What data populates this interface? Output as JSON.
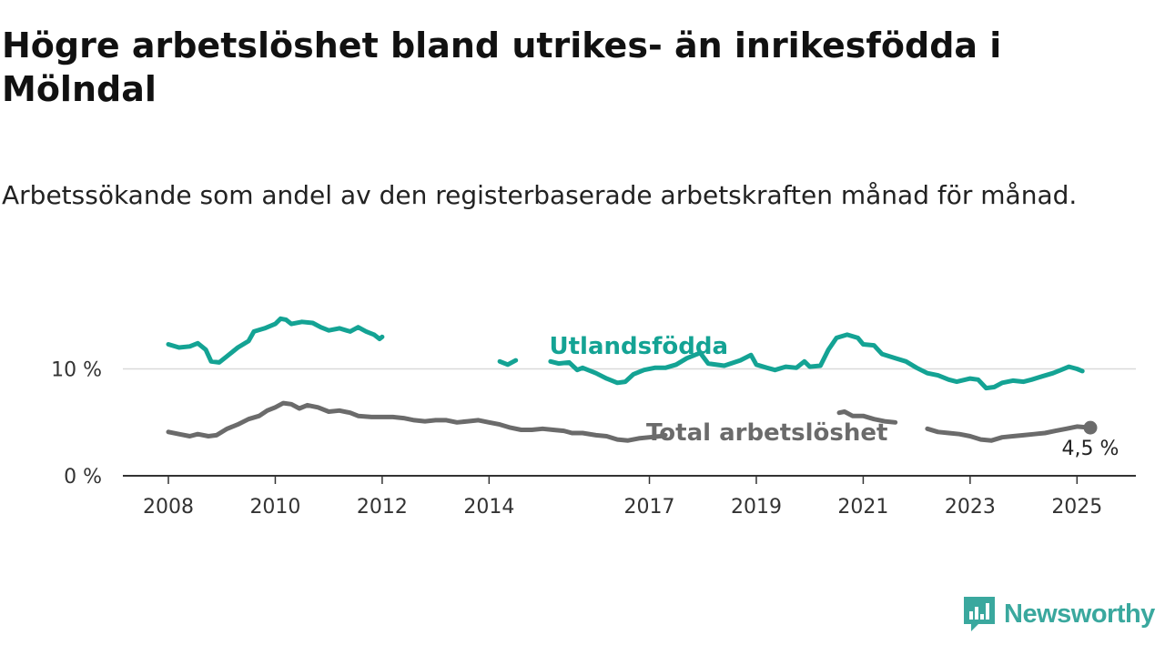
{
  "title": "Högre arbetslöshet bland utrikes- än inrikesfödda i Mölndal",
  "subtitle": "Arbetssökande som andel av den registerbaserade arbetskraften månad för månad.",
  "brand": {
    "name": "Newsworthy",
    "color": "#3aa89e",
    "icon": "newsworthy-logo-icon"
  },
  "chart_data": {
    "type": "line",
    "x_ticks": [
      "2008",
      "2010",
      "2012",
      "2014",
      "2017",
      "2019",
      "2021",
      "2023",
      "2025"
    ],
    "y_ticks": [
      "0 %",
      "10 %"
    ],
    "xlim": [
      2008.0,
      2025.25
    ],
    "ylim": [
      0,
      15
    ],
    "grid": true,
    "series": [
      {
        "name": "Utlandsfödda",
        "color": "#14a394",
        "points": [
          [
            2008.0,
            12.3
          ],
          [
            2008.2,
            12.0
          ],
          [
            2008.4,
            12.1
          ],
          [
            2008.55,
            12.4
          ],
          [
            2008.7,
            11.8
          ],
          [
            2008.8,
            10.7
          ],
          [
            2008.95,
            10.6
          ],
          [
            2009.1,
            11.2
          ],
          [
            2009.3,
            12.0
          ],
          [
            2009.5,
            12.6
          ],
          [
            2009.6,
            13.5
          ],
          [
            2009.8,
            13.8
          ],
          [
            2010.0,
            14.2
          ],
          [
            2010.1,
            14.7
          ],
          [
            2010.2,
            14.6
          ],
          [
            2010.3,
            14.2
          ],
          [
            2010.5,
            14.4
          ],
          [
            2010.7,
            14.3
          ],
          [
            2010.85,
            13.9
          ],
          [
            2011.0,
            13.6
          ],
          [
            2011.2,
            13.8
          ],
          [
            2011.4,
            13.5
          ],
          [
            2011.55,
            13.9
          ],
          [
            2011.7,
            13.5
          ],
          [
            2011.85,
            13.2
          ],
          [
            2011.95,
            12.8
          ],
          [
            2012.0,
            13.0
          ],
          [
            2014.2,
            10.7
          ],
          [
            2014.35,
            10.4
          ],
          [
            2014.5,
            10.8
          ],
          [
            2015.15,
            10.7
          ],
          [
            2015.3,
            10.5
          ],
          [
            2015.5,
            10.6
          ],
          [
            2015.65,
            9.9
          ],
          [
            2015.75,
            10.1
          ],
          [
            2016.0,
            9.6
          ],
          [
            2016.2,
            9.1
          ],
          [
            2016.4,
            8.7
          ],
          [
            2016.55,
            8.8
          ],
          [
            2016.7,
            9.5
          ],
          [
            2016.9,
            9.9
          ],
          [
            2017.1,
            10.1
          ],
          [
            2017.3,
            10.1
          ],
          [
            2017.5,
            10.4
          ],
          [
            2017.7,
            11.0
          ],
          [
            2017.95,
            11.5
          ],
          [
            2018.1,
            10.5
          ],
          [
            2018.4,
            10.3
          ],
          [
            2018.7,
            10.8
          ],
          [
            2018.9,
            11.3
          ],
          [
            2019.0,
            10.4
          ],
          [
            2019.2,
            10.1
          ],
          [
            2019.35,
            9.9
          ],
          [
            2019.55,
            10.2
          ],
          [
            2019.75,
            10.1
          ],
          [
            2019.9,
            10.7
          ],
          [
            2020.0,
            10.2
          ],
          [
            2020.2,
            10.3
          ],
          [
            2020.35,
            11.8
          ],
          [
            2020.5,
            12.9
          ],
          [
            2020.7,
            13.2
          ],
          [
            2020.9,
            12.9
          ],
          [
            2021.0,
            12.3
          ],
          [
            2021.2,
            12.2
          ],
          [
            2021.35,
            11.4
          ],
          [
            2021.6,
            11.0
          ],
          [
            2021.8,
            10.7
          ],
          [
            2022.0,
            10.1
          ],
          [
            2022.2,
            9.6
          ],
          [
            2022.4,
            9.4
          ],
          [
            2022.6,
            9.0
          ],
          [
            2022.75,
            8.8
          ],
          [
            2023.0,
            9.1
          ],
          [
            2023.15,
            9.0
          ],
          [
            2023.3,
            8.2
          ],
          [
            2023.45,
            8.3
          ],
          [
            2023.6,
            8.7
          ],
          [
            2023.8,
            8.9
          ],
          [
            2024.0,
            8.8
          ],
          [
            2024.15,
            9.0
          ],
          [
            2024.35,
            9.3
          ],
          [
            2024.55,
            9.6
          ],
          [
            2024.7,
            9.9
          ],
          [
            2024.85,
            10.2
          ],
          [
            2025.0,
            10.0
          ],
          [
            2025.1,
            9.8
          ]
        ]
      },
      {
        "name": "Total arbetslöshet",
        "color": "#6b6b6b",
        "points": [
          [
            2008.0,
            4.1
          ],
          [
            2008.2,
            3.9
          ],
          [
            2008.4,
            3.7
          ],
          [
            2008.55,
            3.9
          ],
          [
            2008.75,
            3.7
          ],
          [
            2008.9,
            3.8
          ],
          [
            2009.1,
            4.4
          ],
          [
            2009.3,
            4.8
          ],
          [
            2009.5,
            5.3
          ],
          [
            2009.7,
            5.6
          ],
          [
            2009.85,
            6.1
          ],
          [
            2010.0,
            6.4
          ],
          [
            2010.15,
            6.8
          ],
          [
            2010.3,
            6.7
          ],
          [
            2010.45,
            6.3
          ],
          [
            2010.6,
            6.6
          ],
          [
            2010.8,
            6.4
          ],
          [
            2011.0,
            6.0
          ],
          [
            2011.2,
            6.1
          ],
          [
            2011.4,
            5.9
          ],
          [
            2011.55,
            5.6
          ],
          [
            2011.8,
            5.5
          ],
          [
            2012.0,
            5.5
          ],
          [
            2012.2,
            5.5
          ],
          [
            2012.4,
            5.4
          ],
          [
            2012.6,
            5.2
          ],
          [
            2012.8,
            5.1
          ],
          [
            2013.0,
            5.2
          ],
          [
            2013.2,
            5.2
          ],
          [
            2013.4,
            5.0
          ],
          [
            2013.6,
            5.1
          ],
          [
            2013.8,
            5.2
          ],
          [
            2014.0,
            5.0
          ],
          [
            2014.2,
            4.8
          ],
          [
            2014.4,
            4.5
          ],
          [
            2014.6,
            4.3
          ],
          [
            2014.8,
            4.3
          ],
          [
            2015.0,
            4.4
          ],
          [
            2015.2,
            4.3
          ],
          [
            2015.4,
            4.2
          ],
          [
            2015.55,
            4.0
          ],
          [
            2015.75,
            4.0
          ],
          [
            2016.0,
            3.8
          ],
          [
            2016.2,
            3.7
          ],
          [
            2016.4,
            3.4
          ],
          [
            2016.6,
            3.3
          ],
          [
            2016.8,
            3.5
          ],
          [
            2017.0,
            3.6
          ],
          [
            2017.2,
            3.7
          ],
          [
            2017.3,
            3.8
          ],
          [
            2020.55,
            5.9
          ],
          [
            2020.65,
            6.0
          ],
          [
            2020.8,
            5.6
          ],
          [
            2021.0,
            5.6
          ],
          [
            2021.2,
            5.3
          ],
          [
            2021.4,
            5.1
          ],
          [
            2021.6,
            5.0
          ],
          [
            2022.2,
            4.4
          ],
          [
            2022.4,
            4.1
          ],
          [
            2022.6,
            4.0
          ],
          [
            2022.8,
            3.9
          ],
          [
            2023.0,
            3.7
          ],
          [
            2023.2,
            3.4
          ],
          [
            2023.4,
            3.3
          ],
          [
            2023.6,
            3.6
          ],
          [
            2023.8,
            3.7
          ],
          [
            2024.0,
            3.8
          ],
          [
            2024.2,
            3.9
          ],
          [
            2024.4,
            4.0
          ],
          [
            2024.6,
            4.2
          ],
          [
            2024.8,
            4.4
          ],
          [
            2025.0,
            4.6
          ],
          [
            2025.25,
            4.5
          ]
        ]
      }
    ],
    "labels": [
      {
        "text": "Utlandsfödda",
        "series": 0,
        "at": [
          2016.8,
          12.1
        ],
        "color": "#14a394"
      },
      {
        "text": "Total arbetslöshet",
        "series": 1,
        "at": [
          2019.2,
          4.0
        ],
        "color": "#6b6b6b"
      }
    ],
    "end_value": {
      "text": "4,5 %",
      "at": [
        2025.25,
        4.5
      ],
      "series": 1
    }
  }
}
